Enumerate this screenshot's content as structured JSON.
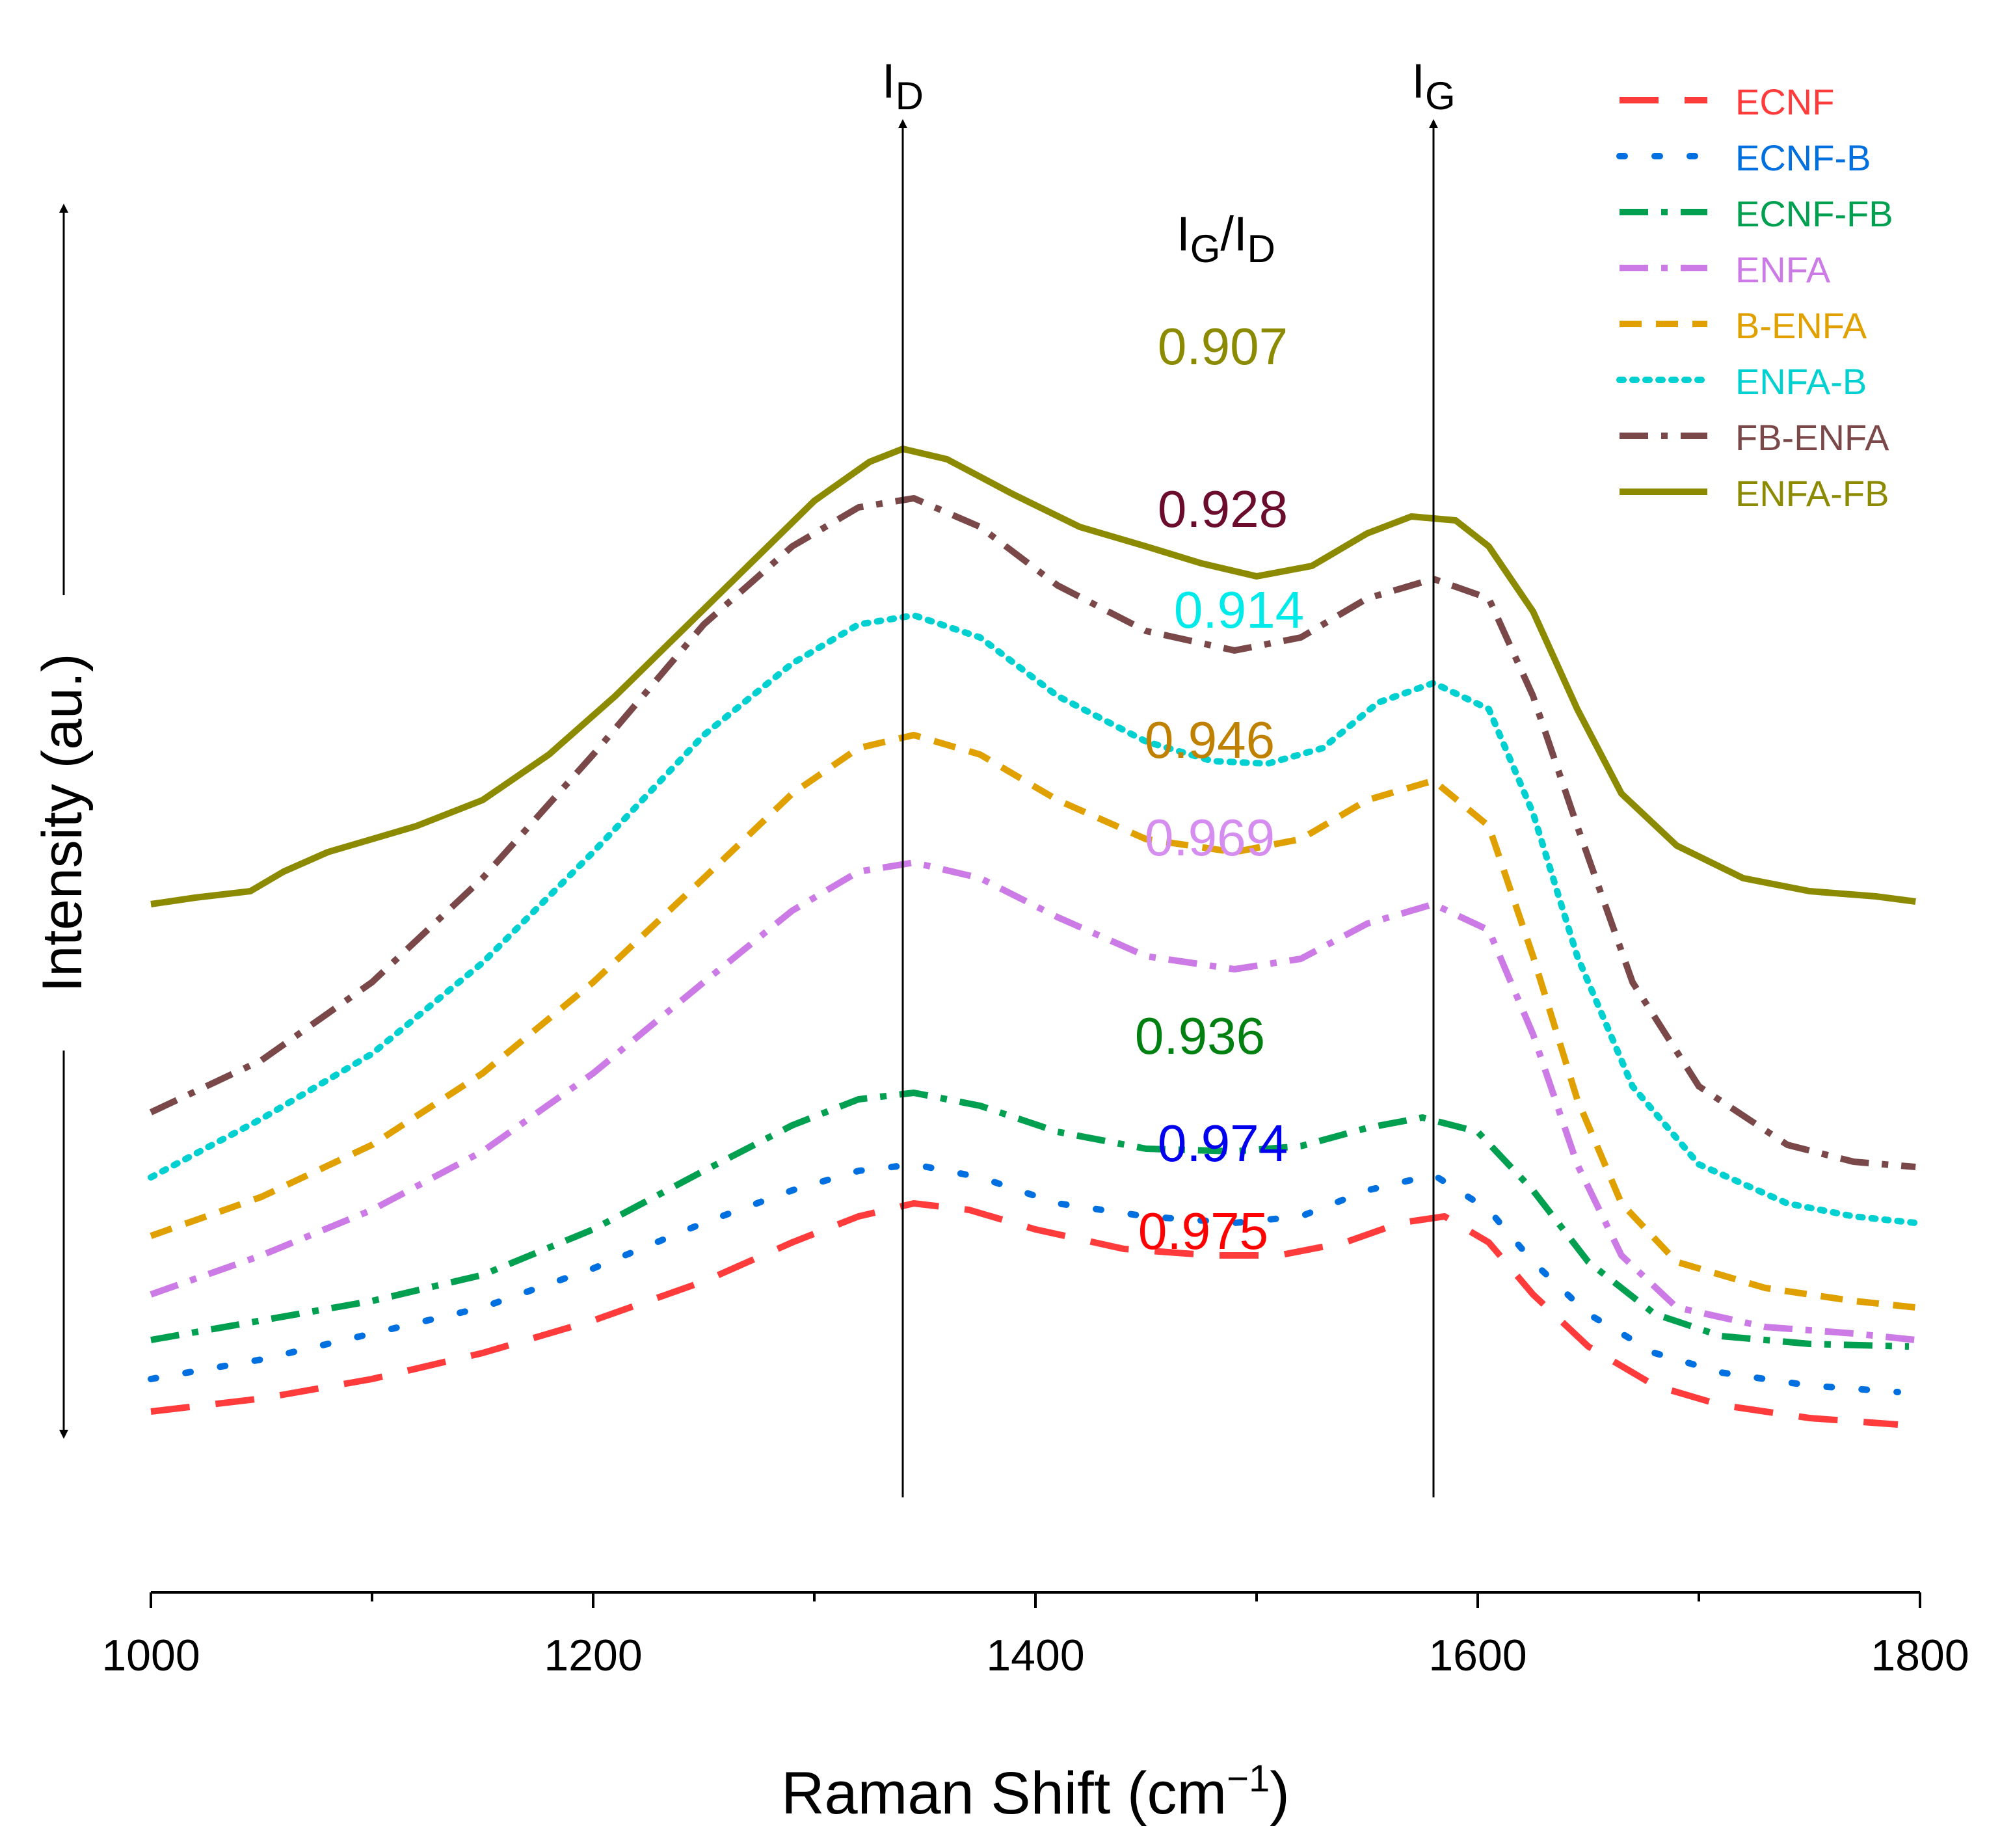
{
  "chart_data": {
    "type": "line",
    "title": "",
    "xlabel": "Raman Shift (cm",
    "xlabel_unit_sup": "−1",
    "xlabel_close": ")",
    "ylabel": "Intensity (au.)",
    "xlim": [
      1000,
      1800
    ],
    "ylim": [
      0,
      1
    ],
    "y_ticks_shown": false,
    "x_ticks": [
      "1000",
      "1200",
      "1400",
      "1600",
      "1800"
    ],
    "x_tick_values": [
      1000,
      1200,
      1400,
      1600,
      1800
    ],
    "x_minor_tick_values": [
      1100,
      1300,
      1500,
      1700
    ],
    "grid": false,
    "legend_placement": "top-right",
    "peak_markers": [
      {
        "label": "I",
        "sub": "D",
        "x": 1340
      },
      {
        "label": "I",
        "sub": "G",
        "x": 1580
      }
    ],
    "ratio_header": {
      "num": "I",
      "num_sub": "G",
      "sep": "/",
      "den": "I",
      "den_sub": "D"
    },
    "series": [
      {
        "name": "ECNF",
        "color": "#ff3b3b",
        "dash": "long-dash",
        "ratio": "0.975",
        "points": [
          [
            1000,
            0.04
          ],
          [
            1050,
            0.05
          ],
          [
            1100,
            0.065
          ],
          [
            1150,
            0.085
          ],
          [
            1200,
            0.11
          ],
          [
            1250,
            0.14
          ],
          [
            1290,
            0.17
          ],
          [
            1320,
            0.19
          ],
          [
            1345,
            0.2
          ],
          [
            1370,
            0.195
          ],
          [
            1400,
            0.18
          ],
          [
            1440,
            0.165
          ],
          [
            1480,
            0.16
          ],
          [
            1510,
            0.16
          ],
          [
            1540,
            0.17
          ],
          [
            1565,
            0.185
          ],
          [
            1585,
            0.19
          ],
          [
            1605,
            0.17
          ],
          [
            1625,
            0.13
          ],
          [
            1650,
            0.09
          ],
          [
            1680,
            0.06
          ],
          [
            1710,
            0.045
          ],
          [
            1750,
            0.035
          ],
          [
            1790,
            0.03
          ]
        ]
      },
      {
        "name": "ECNF-B",
        "color": "#0070e0",
        "dash": "dot-spaced",
        "ratio": "0.974",
        "points": [
          [
            1000,
            0.065
          ],
          [
            1050,
            0.08
          ],
          [
            1100,
            0.1
          ],
          [
            1150,
            0.12
          ],
          [
            1200,
            0.15
          ],
          [
            1250,
            0.185
          ],
          [
            1290,
            0.21
          ],
          [
            1320,
            0.225
          ],
          [
            1345,
            0.23
          ],
          [
            1375,
            0.22
          ],
          [
            1410,
            0.2
          ],
          [
            1450,
            0.19
          ],
          [
            1490,
            0.185
          ],
          [
            1520,
            0.19
          ],
          [
            1550,
            0.21
          ],
          [
            1580,
            0.222
          ],
          [
            1605,
            0.195
          ],
          [
            1625,
            0.155
          ],
          [
            1650,
            0.115
          ],
          [
            1680,
            0.085
          ],
          [
            1710,
            0.07
          ],
          [
            1750,
            0.06
          ],
          [
            1790,
            0.055
          ]
        ]
      },
      {
        "name": "ECNF-FB",
        "color": "#00a050",
        "dash": "dash-dot",
        "ratio": "0.936",
        "points": [
          [
            1000,
            0.095
          ],
          [
            1050,
            0.11
          ],
          [
            1100,
            0.125
          ],
          [
            1150,
            0.145
          ],
          [
            1200,
            0.18
          ],
          [
            1250,
            0.225
          ],
          [
            1290,
            0.26
          ],
          [
            1320,
            0.28
          ],
          [
            1345,
            0.285
          ],
          [
            1375,
            0.275
          ],
          [
            1410,
            0.255
          ],
          [
            1450,
            0.242
          ],
          [
            1490,
            0.24
          ],
          [
            1520,
            0.244
          ],
          [
            1550,
            0.258
          ],
          [
            1575,
            0.266
          ],
          [
            1600,
            0.255
          ],
          [
            1625,
            0.21
          ],
          [
            1650,
            0.155
          ],
          [
            1680,
            0.115
          ],
          [
            1710,
            0.098
          ],
          [
            1750,
            0.092
          ],
          [
            1795,
            0.09
          ]
        ]
      },
      {
        "name": "ENFA",
        "color": "#cc7ae6",
        "dash": "dash-dot",
        "ratio": "0.969",
        "points": [
          [
            1000,
            0.13
          ],
          [
            1050,
            0.16
          ],
          [
            1100,
            0.195
          ],
          [
            1150,
            0.24
          ],
          [
            1200,
            0.3
          ],
          [
            1250,
            0.37
          ],
          [
            1290,
            0.425
          ],
          [
            1320,
            0.455
          ],
          [
            1345,
            0.462
          ],
          [
            1375,
            0.45
          ],
          [
            1410,
            0.42
          ],
          [
            1450,
            0.39
          ],
          [
            1490,
            0.38
          ],
          [
            1520,
            0.388
          ],
          [
            1550,
            0.415
          ],
          [
            1580,
            0.43
          ],
          [
            1605,
            0.41
          ],
          [
            1625,
            0.33
          ],
          [
            1645,
            0.23
          ],
          [
            1665,
            0.16
          ],
          [
            1690,
            0.12
          ],
          [
            1730,
            0.105
          ],
          [
            1770,
            0.1
          ],
          [
            1798,
            0.095
          ]
        ]
      },
      {
        "name": "B-ENFA",
        "color": "#e0a000",
        "dash": "dash",
        "ratio": "0.946",
        "points": [
          [
            1000,
            0.175
          ],
          [
            1050,
            0.205
          ],
          [
            1100,
            0.245
          ],
          [
            1150,
            0.3
          ],
          [
            1200,
            0.37
          ],
          [
            1250,
            0.45
          ],
          [
            1290,
            0.515
          ],
          [
            1320,
            0.55
          ],
          [
            1345,
            0.56
          ],
          [
            1375,
            0.545
          ],
          [
            1410,
            0.51
          ],
          [
            1450,
            0.48
          ],
          [
            1490,
            0.47
          ],
          [
            1520,
            0.48
          ],
          [
            1550,
            0.51
          ],
          [
            1580,
            0.525
          ],
          [
            1605,
            0.49
          ],
          [
            1625,
            0.39
          ],
          [
            1645,
            0.28
          ],
          [
            1665,
            0.2
          ],
          [
            1690,
            0.155
          ],
          [
            1730,
            0.135
          ],
          [
            1770,
            0.125
          ],
          [
            1798,
            0.12
          ]
        ]
      },
      {
        "name": "ENFA-B",
        "color": "#00d0d0",
        "dash": "dot",
        "ratio": "0.914",
        "points": [
          [
            1000,
            0.22
          ],
          [
            1050,
            0.265
          ],
          [
            1100,
            0.315
          ],
          [
            1150,
            0.385
          ],
          [
            1200,
            0.47
          ],
          [
            1250,
            0.56
          ],
          [
            1290,
            0.615
          ],
          [
            1320,
            0.645
          ],
          [
            1345,
            0.652
          ],
          [
            1375,
            0.635
          ],
          [
            1410,
            0.59
          ],
          [
            1450,
            0.555
          ],
          [
            1480,
            0.54
          ],
          [
            1505,
            0.538
          ],
          [
            1530,
            0.55
          ],
          [
            1555,
            0.585
          ],
          [
            1580,
            0.6
          ],
          [
            1605,
            0.58
          ],
          [
            1625,
            0.5
          ],
          [
            1645,
            0.39
          ],
          [
            1670,
            0.29
          ],
          [
            1700,
            0.23
          ],
          [
            1740,
            0.2
          ],
          [
            1770,
            0.19
          ],
          [
            1798,
            0.185
          ]
        ]
      },
      {
        "name": "FB-ENFA",
        "color": "#7a4848",
        "dash": "dash-dot",
        "ratio": "0.928",
        "points": [
          [
            1000,
            0.27
          ],
          [
            1050,
            0.31
          ],
          [
            1100,
            0.37
          ],
          [
            1150,
            0.45
          ],
          [
            1200,
            0.545
          ],
          [
            1250,
            0.645
          ],
          [
            1290,
            0.705
          ],
          [
            1320,
            0.735
          ],
          [
            1345,
            0.742
          ],
          [
            1375,
            0.72
          ],
          [
            1410,
            0.675
          ],
          [
            1450,
            0.64
          ],
          [
            1490,
            0.625
          ],
          [
            1520,
            0.635
          ],
          [
            1550,
            0.665
          ],
          [
            1580,
            0.68
          ],
          [
            1605,
            0.665
          ],
          [
            1625,
            0.59
          ],
          [
            1645,
            0.49
          ],
          [
            1670,
            0.37
          ],
          [
            1700,
            0.29
          ],
          [
            1740,
            0.245
          ],
          [
            1770,
            0.232
          ],
          [
            1798,
            0.228
          ]
        ]
      },
      {
        "name": "ENFA-FB",
        "color": "#8b8a00",
        "dash": "solid",
        "ratio": "0.907",
        "points": [
          [
            1000,
            0.43
          ],
          [
            1020,
            0.435
          ],
          [
            1045,
            0.44
          ],
          [
            1060,
            0.455
          ],
          [
            1080,
            0.47
          ],
          [
            1100,
            0.48
          ],
          [
            1120,
            0.49
          ],
          [
            1150,
            0.51
          ],
          [
            1180,
            0.545
          ],
          [
            1210,
            0.59
          ],
          [
            1240,
            0.64
          ],
          [
            1270,
            0.69
          ],
          [
            1300,
            0.74
          ],
          [
            1325,
            0.77
          ],
          [
            1340,
            0.78
          ],
          [
            1360,
            0.772
          ],
          [
            1390,
            0.745
          ],
          [
            1420,
            0.72
          ],
          [
            1450,
            0.705
          ],
          [
            1475,
            0.692
          ],
          [
            1500,
            0.682
          ],
          [
            1525,
            0.69
          ],
          [
            1550,
            0.715
          ],
          [
            1570,
            0.728
          ],
          [
            1590,
            0.725
          ],
          [
            1605,
            0.705
          ],
          [
            1625,
            0.655
          ],
          [
            1645,
            0.58
          ],
          [
            1665,
            0.515
          ],
          [
            1690,
            0.475
          ],
          [
            1720,
            0.45
          ],
          [
            1750,
            0.44
          ],
          [
            1780,
            0.436
          ],
          [
            1798,
            0.432
          ]
        ]
      }
    ]
  }
}
